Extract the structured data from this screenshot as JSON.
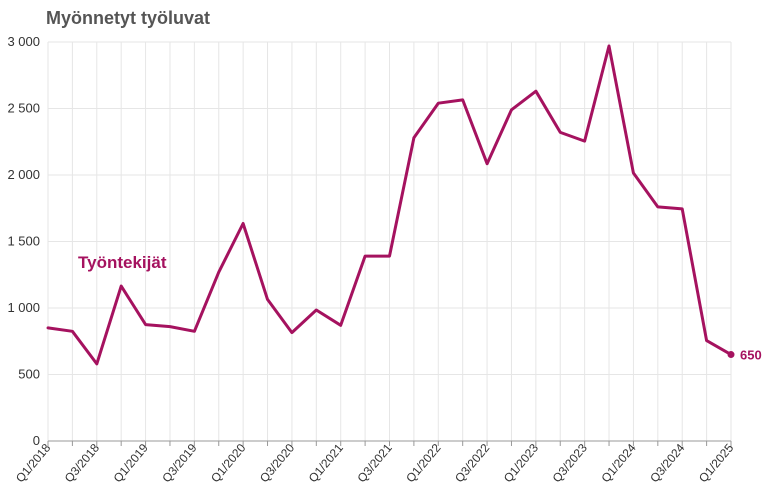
{
  "colors": {
    "series": "#a5125f",
    "grid": "#e6e6e6",
    "axis": "#999999"
  },
  "chart_data": {
    "type": "line",
    "title": "Myönnetyt työluvat",
    "xlabel": "",
    "ylabel": "",
    "ylim": [
      0,
      3000
    ],
    "yticks": [
      0,
      500,
      1000,
      1500,
      2000,
      2500,
      3000
    ],
    "ytick_labels": [
      "0",
      "500",
      "1 000",
      "1 500",
      "2 000",
      "2 500",
      "3 000"
    ],
    "x": [
      "Q1/2018",
      "Q2/2018",
      "Q3/2018",
      "Q4/2018",
      "Q1/2019",
      "Q2/2019",
      "Q3/2019",
      "Q4/2019",
      "Q1/2020",
      "Q2/2020",
      "Q3/2020",
      "Q4/2020",
      "Q1/2021",
      "Q2/2021",
      "Q3/2021",
      "Q4/2021",
      "Q1/2022",
      "Q2/2022",
      "Q3/2022",
      "Q4/2022",
      "Q1/2023",
      "Q2/2023",
      "Q3/2023",
      "Q4/2023",
      "Q1/2024",
      "Q2/2024",
      "Q3/2024",
      "Q4/2024",
      "Q1/2025"
    ],
    "xtick_labels": [
      "Q1/2018",
      "Q3/2018",
      "Q1/2019",
      "Q3/2019",
      "Q1/2020",
      "Q3/2020",
      "Q1/2021",
      "Q3/2021",
      "Q1/2022",
      "Q3/2022",
      "Q1/2023",
      "Q3/2023",
      "Q1/2024",
      "Q3/2024",
      "Q1/2025"
    ],
    "grid": true,
    "series": [
      {
        "name": "Työntekijät",
        "values": [
          850,
          825,
          580,
          1165,
          875,
          860,
          825,
          1270,
          1635,
          1065,
          815,
          985,
          870,
          1390,
          1390,
          2280,
          2540,
          2565,
          2085,
          2490,
          2630,
          2320,
          2255,
          2970,
          2015,
          1760,
          1745,
          755,
          650
        ]
      }
    ],
    "end_label": "650"
  }
}
